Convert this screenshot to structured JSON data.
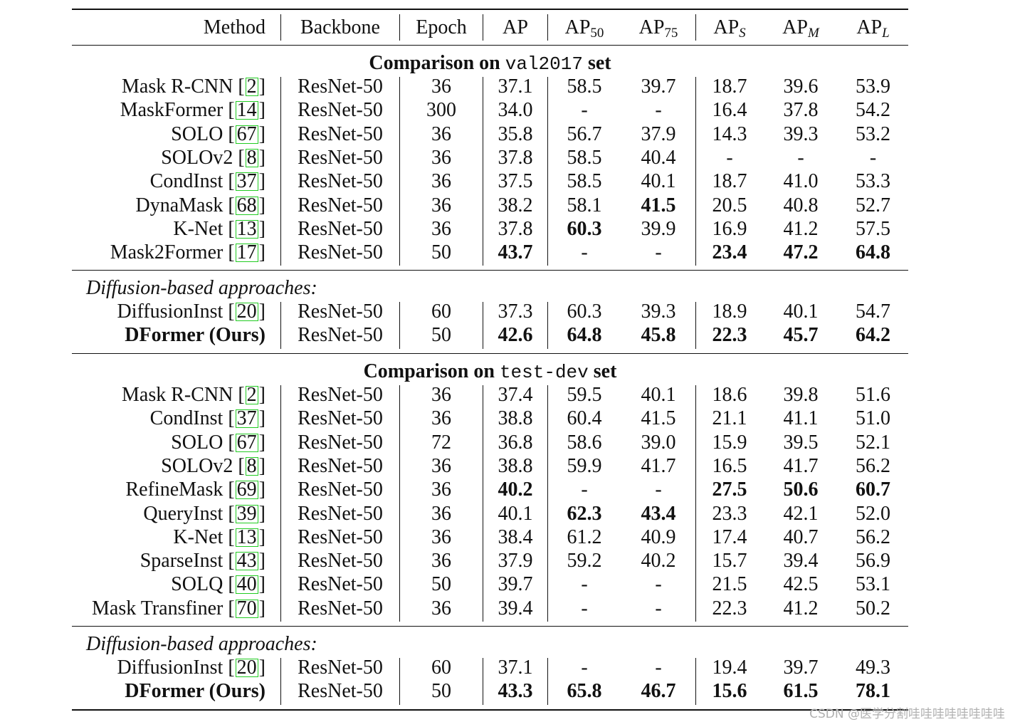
{
  "header": {
    "method": "Method",
    "backbone": "Backbone",
    "epoch": "Epoch",
    "ap": "AP",
    "ap50_base": "AP",
    "ap50_sub": "50",
    "ap75_base": "AP",
    "ap75_sub": "75",
    "aps_base": "AP",
    "aps_sub": "S",
    "apm_base": "AP",
    "apm_sub": "M",
    "apl_base": "AP",
    "apl_sub": "L"
  },
  "sections": {
    "val": {
      "prefix": "Comparison on",
      "code": "val2017",
      "suffix": "set"
    },
    "test": {
      "prefix": "Comparison on",
      "code": "test-dev",
      "suffix": "set"
    }
  },
  "diffusion_label": "Diffusion-based approaches:",
  "rows": [
    {
      "method": "Mask R-CNN",
      "cite": "2",
      "backbone": "ResNet-50",
      "epoch": "36",
      "ap": "37.1",
      "ap50": "58.5",
      "ap75": "39.7",
      "aps": "18.7",
      "apm": "39.6",
      "apl": "53.9"
    },
    {
      "method": "MaskFormer",
      "cite": "14",
      "backbone": "ResNet-50",
      "epoch": "300",
      "ap": "34.0",
      "ap50": "-",
      "ap75": "-",
      "aps": "16.4",
      "apm": "37.8",
      "apl": "54.2"
    },
    {
      "method": "SOLO",
      "cite": "67",
      "backbone": "ResNet-50",
      "epoch": "36",
      "ap": "35.8",
      "ap50": "56.7",
      "ap75": "37.9",
      "aps": "14.3",
      "apm": "39.3",
      "apl": "53.2"
    },
    {
      "method": "SOLOv2",
      "cite": "8",
      "backbone": "ResNet-50",
      "epoch": "36",
      "ap": "37.8",
      "ap50": "58.5",
      "ap75": "40.4",
      "aps": "-",
      "apm": "-",
      "apl": "-"
    },
    {
      "method": "CondInst",
      "cite": "37",
      "backbone": "ResNet-50",
      "epoch": "36",
      "ap": "37.5",
      "ap50": "58.5",
      "ap75": "40.1",
      "aps": "18.7",
      "apm": "41.0",
      "apl": "53.3"
    },
    {
      "method": "DynaMask",
      "cite": "68",
      "backbone": "ResNet-50",
      "epoch": "36",
      "ap": "38.2",
      "ap50": "58.1",
      "ap75": "41.5",
      "aps": "20.5",
      "apm": "40.8",
      "apl": "52.7"
    },
    {
      "method": "K-Net",
      "cite": "13",
      "backbone": "ResNet-50",
      "epoch": "36",
      "ap": "37.8",
      "ap50": "60.3",
      "ap75": "39.9",
      "aps": "16.9",
      "apm": "41.2",
      "apl": "57.5"
    },
    {
      "method": "Mask2Former",
      "cite": "17",
      "backbone": "ResNet-50",
      "epoch": "50",
      "ap": "43.7",
      "ap50": "-",
      "ap75": "-",
      "aps": "23.4",
      "apm": "47.2",
      "apl": "64.8"
    },
    {
      "method": "DiffusionInst",
      "cite": "20",
      "backbone": "ResNet-50",
      "epoch": "60",
      "ap": "37.3",
      "ap50": "60.3",
      "ap75": "39.3",
      "aps": "18.9",
      "apm": "40.1",
      "apl": "54.7"
    },
    {
      "method": "DFormer (Ours)",
      "cite": "",
      "backbone": "ResNet-50",
      "epoch": "50",
      "ap": "42.6",
      "ap50": "64.8",
      "ap75": "45.8",
      "aps": "22.3",
      "apm": "45.7",
      "apl": "64.2"
    },
    {
      "method": "Mask R-CNN",
      "cite": "2",
      "backbone": "ResNet-50",
      "epoch": "36",
      "ap": "37.4",
      "ap50": "59.5",
      "ap75": "40.1",
      "aps": "18.6",
      "apm": "39.8",
      "apl": "51.6"
    },
    {
      "method": "CondInst",
      "cite": "37",
      "backbone": "ResNet-50",
      "epoch": "36",
      "ap": "38.8",
      "ap50": "60.4",
      "ap75": "41.5",
      "aps": "21.1",
      "apm": "41.1",
      "apl": "51.0"
    },
    {
      "method": "SOLO",
      "cite": "67",
      "backbone": "ResNet-50",
      "epoch": "72",
      "ap": "36.8",
      "ap50": "58.6",
      "ap75": "39.0",
      "aps": "15.9",
      "apm": "39.5",
      "apl": "52.1"
    },
    {
      "method": "SOLOv2",
      "cite": "8",
      "backbone": "ResNet-50",
      "epoch": "36",
      "ap": "38.8",
      "ap50": "59.9",
      "ap75": "41.7",
      "aps": "16.5",
      "apm": "41.7",
      "apl": "56.2"
    },
    {
      "method": "RefineMask",
      "cite": "69",
      "backbone": "ResNet-50",
      "epoch": "36",
      "ap": "40.2",
      "ap50": "-",
      "ap75": "-",
      "aps": "27.5",
      "apm": "50.6",
      "apl": "60.7"
    },
    {
      "method": "QueryInst",
      "cite": "39",
      "backbone": "ResNet-50",
      "epoch": "36",
      "ap": "40.1",
      "ap50": "62.3",
      "ap75": "43.4",
      "aps": "23.3",
      "apm": "42.1",
      "apl": "52.0"
    },
    {
      "method": "K-Net",
      "cite": "13",
      "backbone": "ResNet-50",
      "epoch": "36",
      "ap": "38.4",
      "ap50": "61.2",
      "ap75": "40.9",
      "aps": "17.4",
      "apm": "40.7",
      "apl": "56.2"
    },
    {
      "method": "SparseInst",
      "cite": "43",
      "backbone": "ResNet-50",
      "epoch": "36",
      "ap": "37.9",
      "ap50": "59.2",
      "ap75": "40.2",
      "aps": "15.7",
      "apm": "39.4",
      "apl": "56.9"
    },
    {
      "method": "SOLQ",
      "cite": "40",
      "backbone": "ResNet-50",
      "epoch": "50",
      "ap": "39.7",
      "ap50": "-",
      "ap75": "-",
      "aps": "21.5",
      "apm": "42.5",
      "apl": "53.1"
    },
    {
      "method": "Mask Transfiner",
      "cite": "70",
      "backbone": "ResNet-50",
      "epoch": "36",
      "ap": "39.4",
      "ap50": "-",
      "ap75": "-",
      "aps": "22.3",
      "apm": "41.2",
      "apl": "50.2"
    },
    {
      "method": "DiffusionInst",
      "cite": "20",
      "backbone": "ResNet-50",
      "epoch": "60",
      "ap": "37.1",
      "ap50": "-",
      "ap75": "-",
      "aps": "19.4",
      "apm": "39.7",
      "apl": "49.3"
    },
    {
      "method": "DFormer (Ours)",
      "cite": "",
      "backbone": "ResNet-50",
      "epoch": "50",
      "ap": "43.3",
      "ap50": "65.8",
      "ap75": "46.7",
      "aps": "15.6",
      "apm": "61.5",
      "apl": "78.1"
    }
  ],
  "watermark": "CSDN @医学分割哇哇哇哇哇哇哇哇"
}
